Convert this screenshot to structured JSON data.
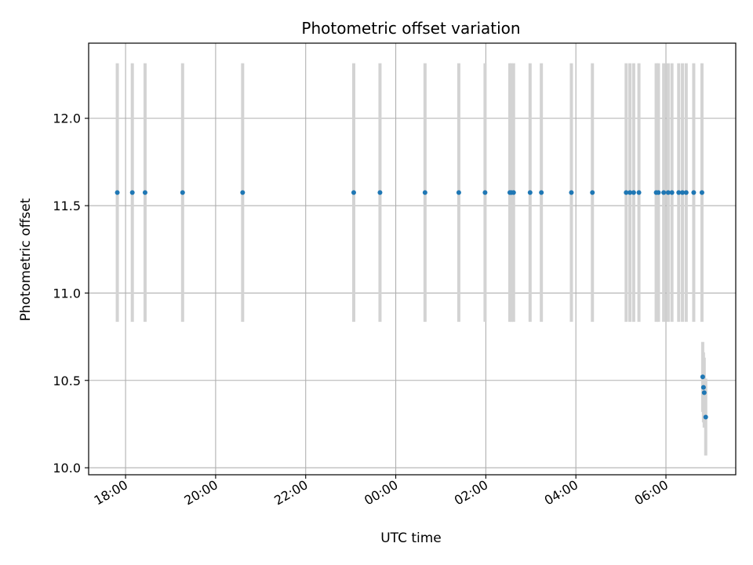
{
  "chart_data": {
    "type": "scatter",
    "title": "Photometric offset variation",
    "xlabel": "UTC time",
    "ylabel": "Photometric offset",
    "x_axis_kind": "time",
    "x_tick_labels": [
      "18:00",
      "20:00",
      "22:00",
      "00:00",
      "02:00",
      "04:00",
      "06:00"
    ],
    "x_tick_values_hours_since_18": [
      0,
      2,
      4,
      6,
      8,
      10,
      12
    ],
    "xlim_hours_since_18": [
      -0.82,
      13.55
    ],
    "y_tick_labels": [
      "10.0",
      "10.5",
      "11.0",
      "11.5",
      "12.0"
    ],
    "y_tick_values": [
      10.0,
      10.5,
      11.0,
      11.5,
      12.0
    ],
    "ylim": [
      9.96,
      12.43
    ],
    "grid": true,
    "colors": {
      "marker": "#1f77b4",
      "errorbar": "#d3d3d3",
      "grid": "#b0b0b0",
      "axes": "#000000"
    },
    "series": [
      {
        "points": [
          {
            "t": "17:49",
            "y": 11.575,
            "err": 0.74
          },
          {
            "t": "18:09",
            "y": 11.575,
            "err": 0.74
          },
          {
            "t": "18:26",
            "y": 11.575,
            "err": 0.74
          },
          {
            "t": "19:16",
            "y": 11.575,
            "err": 0.74
          },
          {
            "t": "20:36",
            "y": 11.575,
            "err": 0.74
          },
          {
            "t": "23:04",
            "y": 11.575,
            "err": 0.74
          },
          {
            "t": "23:39",
            "y": 11.575,
            "err": 0.74
          },
          {
            "t": "00:39",
            "y": 11.575,
            "err": 0.74
          },
          {
            "t": "01:24",
            "y": 11.575,
            "err": 0.74
          },
          {
            "t": "01:59",
            "y": 11.575,
            "err": 0.74
          },
          {
            "t": "02:32",
            "y": 11.575,
            "err": 0.74
          },
          {
            "t": "02:34",
            "y": 11.575,
            "err": 0.74
          },
          {
            "t": "02:37",
            "y": 11.575,
            "err": 0.74
          },
          {
            "t": "02:59",
            "y": 11.575,
            "err": 0.74
          },
          {
            "t": "03:14",
            "y": 11.575,
            "err": 0.74
          },
          {
            "t": "03:54",
            "y": 11.575,
            "err": 0.74
          },
          {
            "t": "04:22",
            "y": 11.575,
            "err": 0.74
          },
          {
            "t": "05:07",
            "y": 11.575,
            "err": 0.74
          },
          {
            "t": "05:12",
            "y": 11.575,
            "err": 0.74
          },
          {
            "t": "05:17",
            "y": 11.575,
            "err": 0.74
          },
          {
            "t": "05:24",
            "y": 11.575,
            "err": 0.74
          },
          {
            "t": "05:47",
            "y": 11.575,
            "err": 0.74
          },
          {
            "t": "05:50",
            "y": 11.575,
            "err": 0.74
          },
          {
            "t": "05:57",
            "y": 11.575,
            "err": 0.74
          },
          {
            "t": "06:03",
            "y": 11.575,
            "err": 0.74
          },
          {
            "t": "06:08",
            "y": 11.575,
            "err": 0.74
          },
          {
            "t": "06:17",
            "y": 11.575,
            "err": 0.74
          },
          {
            "t": "06:22",
            "y": 11.575,
            "err": 0.74
          },
          {
            "t": "06:27",
            "y": 11.575,
            "err": 0.74
          },
          {
            "t": "06:37",
            "y": 11.575,
            "err": 0.74
          },
          {
            "t": "06:48",
            "y": 11.575,
            "err": 0.74
          },
          {
            "t": "06:49",
            "y": 10.52,
            "err": 0.2
          },
          {
            "t": "06:50",
            "y": 10.46,
            "err": 0.2
          },
          {
            "t": "06:51",
            "y": 10.43,
            "err": 0.2
          },
          {
            "t": "06:53",
            "y": 10.29,
            "err": 0.22
          }
        ]
      }
    ]
  }
}
